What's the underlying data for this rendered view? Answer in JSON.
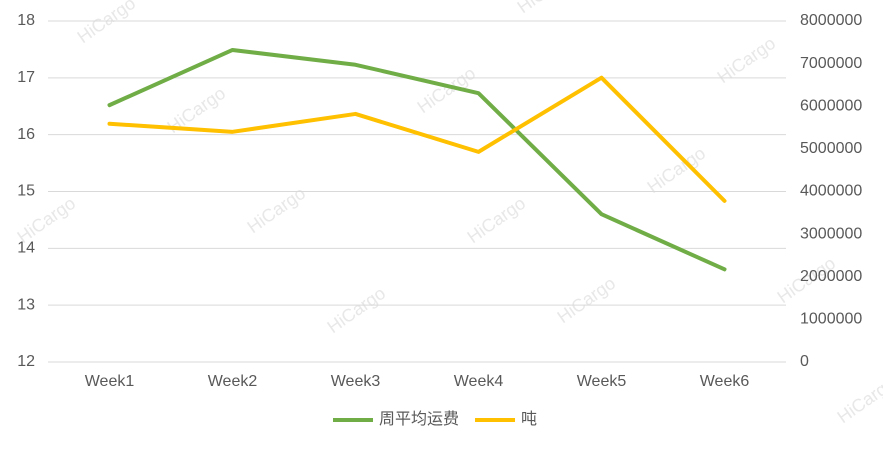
{
  "chart_data": {
    "type": "line",
    "categories": [
      "Week1",
      "Week2",
      "Week3",
      "Week4",
      "Week5",
      "Week6"
    ],
    "series": [
      {
        "name": "周平均运费",
        "color": "#70ad47",
        "values": [
          16.52,
          17.49,
          17.23,
          16.73,
          14.6,
          13.63
        ]
      },
      {
        "name": "吨",
        "color": "#ffc000",
        "axis": "y2",
        "values": [
          5590000,
          5400000,
          5820000,
          4930000,
          6670000,
          3780000
        ]
      }
    ],
    "ylim": [
      12,
      18
    ],
    "yticks": [
      12,
      13,
      14,
      15,
      16,
      17,
      18
    ],
    "y2lim": [
      0,
      8000000
    ],
    "y2ticks": [
      0,
      1000000,
      2000000,
      3000000,
      4000000,
      5000000,
      6000000,
      7000000,
      8000000
    ],
    "grid": true,
    "legend": "bottom",
    "watermark": "HiCargo"
  }
}
